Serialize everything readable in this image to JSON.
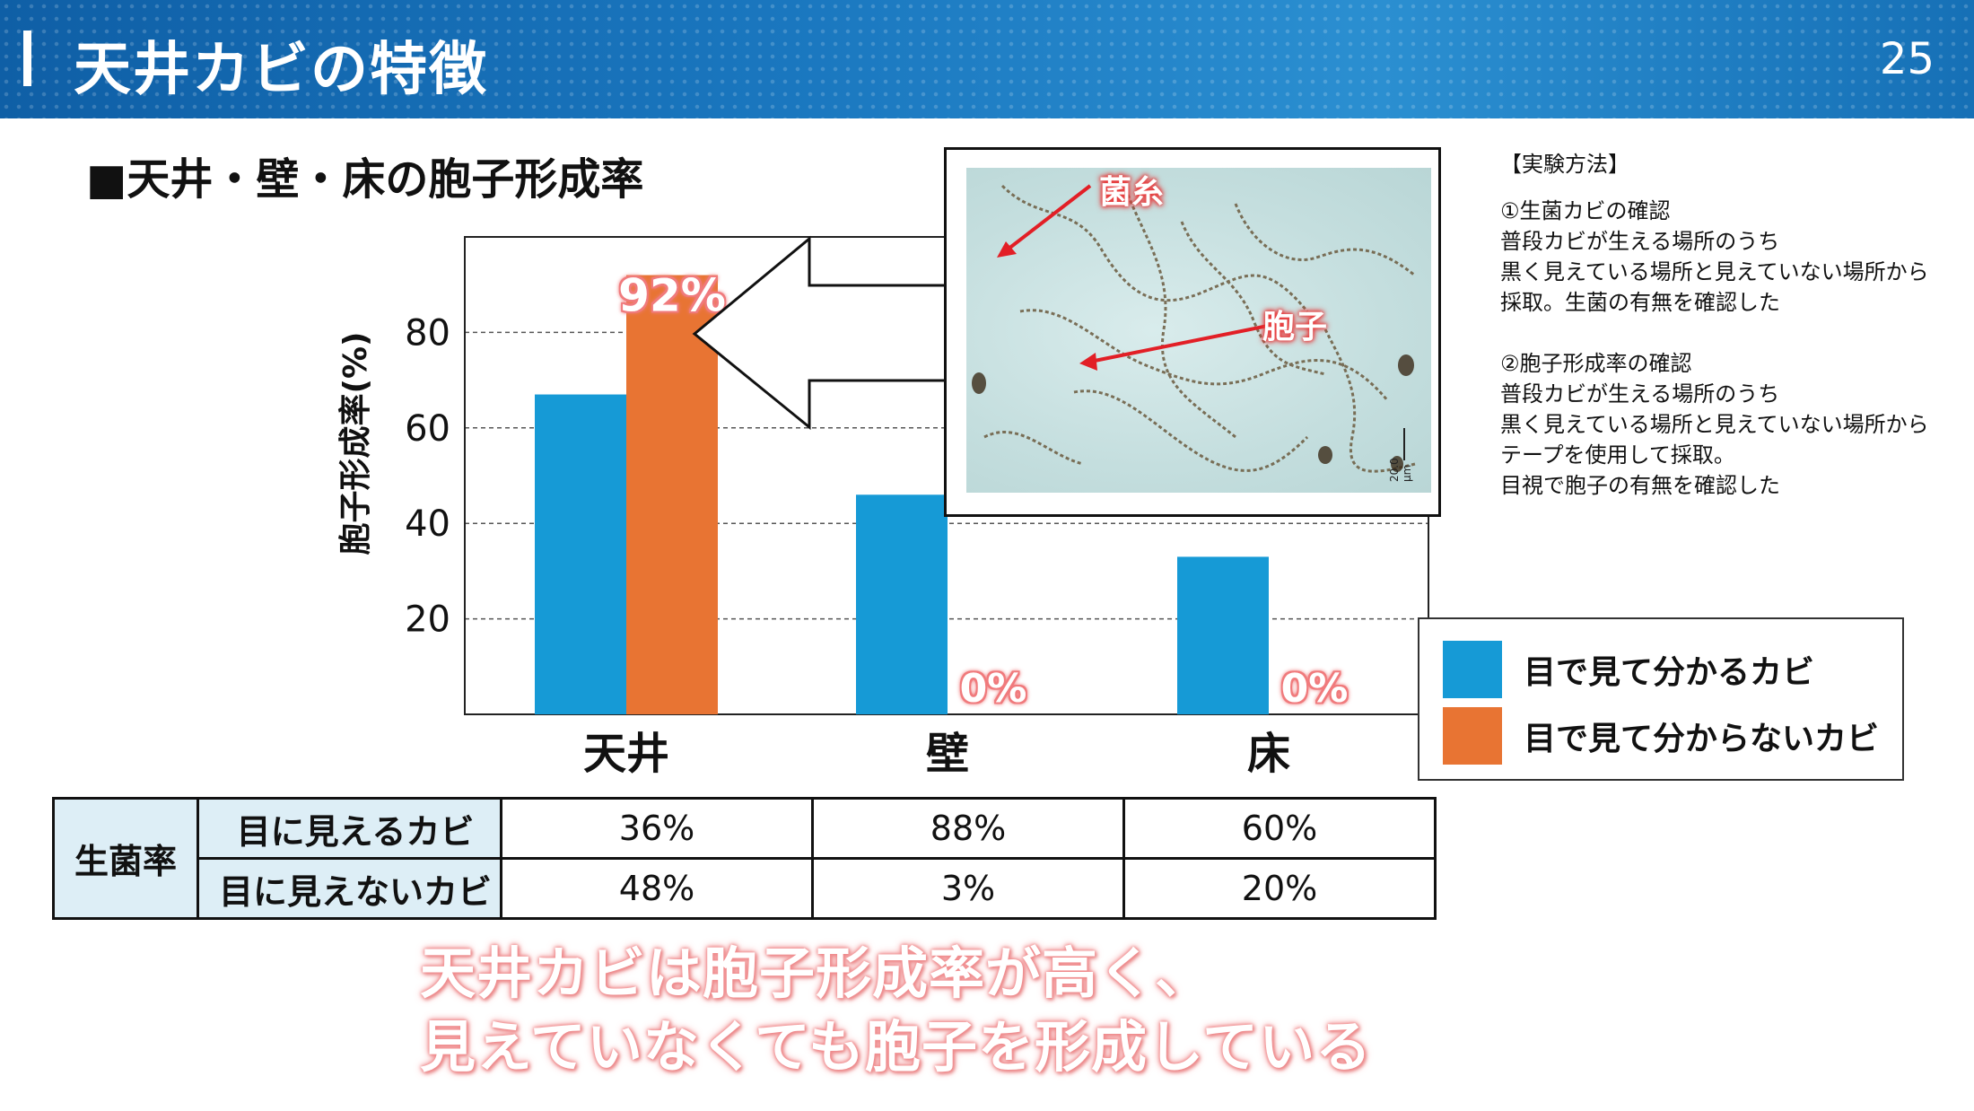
{
  "header": {
    "title": "天井カビの特徴",
    "page_number": "25"
  },
  "section_title": "■天井・壁・床の胞子形成率",
  "chart_data": {
    "type": "bar",
    "categories": [
      "天井",
      "壁",
      "床"
    ],
    "series": [
      {
        "name": "目で見て分かるカビ",
        "values": [
          67,
          46,
          33
        ],
        "color": "#169ad6"
      },
      {
        "name": "目で見て分からないカビ",
        "values": [
          92,
          0,
          0
        ],
        "color": "#e87433"
      }
    ],
    "data_labels": [
      "92%",
      "0%",
      "0%"
    ],
    "ylabel": "胞子形成率(%)",
    "yticks": [
      "20",
      "40",
      "60",
      "80"
    ],
    "ylim": [
      0,
      100
    ],
    "grid": true
  },
  "micrograph": {
    "label_hyphae": "菌糸",
    "label_spores": "胞子",
    "scale": "20.0 μm"
  },
  "method": {
    "heading": "【実験方法】",
    "step1_title": "①生菌カビの確認",
    "step1_lines": [
      "普段カビが生える場所のうち",
      "黒く見えている場所と見えていない場所から",
      "採取。生菌の有無を確認した"
    ],
    "step2_title": "②胞子形成率の確認",
    "step2_lines": [
      "普段カビが生える場所のうち",
      "黒く見えている場所と見えていない場所から",
      "テープを使用して採取。",
      "目視で胞子の有無を確認した"
    ]
  },
  "legend": {
    "visible": "目で見て分かるカビ",
    "invisible": "目で見て分からないカビ"
  },
  "table": {
    "row_header": "生菌率",
    "rows": [
      {
        "label": "目に見えるカビ",
        "values": [
          "36%",
          "88%",
          "60%"
        ]
      },
      {
        "label": "目に見えないカビ",
        "values": [
          "48%",
          "3%",
          "20%"
        ]
      }
    ]
  },
  "conclusion": {
    "line1": "天井カビは胞子形成率が高く、",
    "line2": "見えていなくても胞子を形成している"
  },
  "colors": {
    "blue": "#169ad6",
    "orange": "#e87433",
    "header": "#1a77bf",
    "table_head": "#ddeef6"
  }
}
